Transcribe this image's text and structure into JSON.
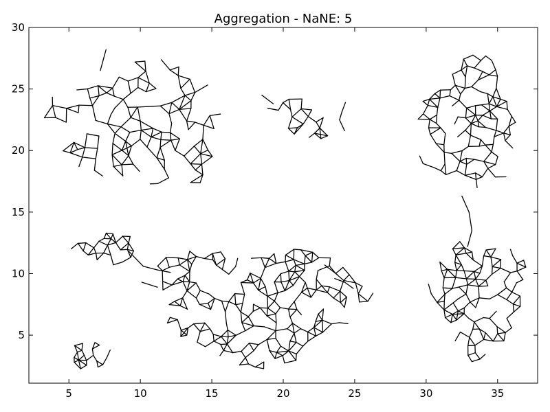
{
  "chart_data": {
    "type": "network",
    "title": "Aggregation - NaNE: 5",
    "xlabel": "",
    "ylabel": "",
    "xlim": [
      2.2,
      37.8
    ],
    "ylim": [
      1.1,
      30
    ],
    "x_ticks": [
      5,
      10,
      15,
      20,
      25,
      30,
      35
    ],
    "y_ticks": [
      5,
      10,
      15,
      20,
      25,
      30
    ],
    "grid": false,
    "edge_color": "#000000",
    "clusters": [
      {
        "center": [
          10.0,
          22.0
        ],
        "rx": 6.3,
        "ry": 5.0,
        "n_nodes": 120,
        "seed": 11
      },
      {
        "center": [
          21.6,
          22.6
        ],
        "rx": 3.1,
        "ry": 1.9,
        "n_nodes": 28,
        "seed": 23
      },
      {
        "center": [
          33.0,
          22.0
        ],
        "rx": 3.5,
        "ry": 5.3,
        "n_nodes": 110,
        "seed": 37
      },
      {
        "center": [
          33.7,
          8.2
        ],
        "rx": 3.3,
        "ry": 4.7,
        "n_nodes": 100,
        "seed": 41
      },
      {
        "center": [
          18.3,
          7.6
        ],
        "rx": 7.3,
        "ry": 4.8,
        "n_nodes": 200,
        "seed": 53
      },
      {
        "center": [
          7.6,
          12.1
        ],
        "rx": 2.4,
        "ry": 1.4,
        "n_nodes": 26,
        "seed": 61
      },
      {
        "center": [
          6.6,
          3.4
        ],
        "rx": 1.6,
        "ry": 1.3,
        "n_nodes": 20,
        "seed": 71
      }
    ],
    "bridges": [
      [
        [
          9.2,
          11.8
        ],
        [
          10.2,
          10.6
        ],
        [
          11.2,
          10.3
        ],
        [
          12.1,
          10.1
        ]
      ],
      [
        [
          32.5,
          16.3
        ],
        [
          33.0,
          15.0
        ],
        [
          33.2,
          13.5
        ],
        [
          32.9,
          12.2
        ]
      ],
      [
        [
          24.9,
          8.8
        ],
        [
          24.3,
          9.3
        ],
        [
          23.6,
          9.6
        ]
      ]
    ],
    "stray_edges": [
      [
        [
          7.2,
          26.5
        ],
        [
          7.6,
          28.2
        ]
      ],
      [
        [
          18.5,
          24.5
        ],
        [
          19.3,
          23.8
        ]
      ],
      [
        [
          22.9,
          10.7
        ],
        [
          23.8,
          9.9
        ]
      ],
      [
        [
          11.2,
          8.9
        ],
        [
          10.1,
          9.3
        ]
      ]
    ]
  }
}
